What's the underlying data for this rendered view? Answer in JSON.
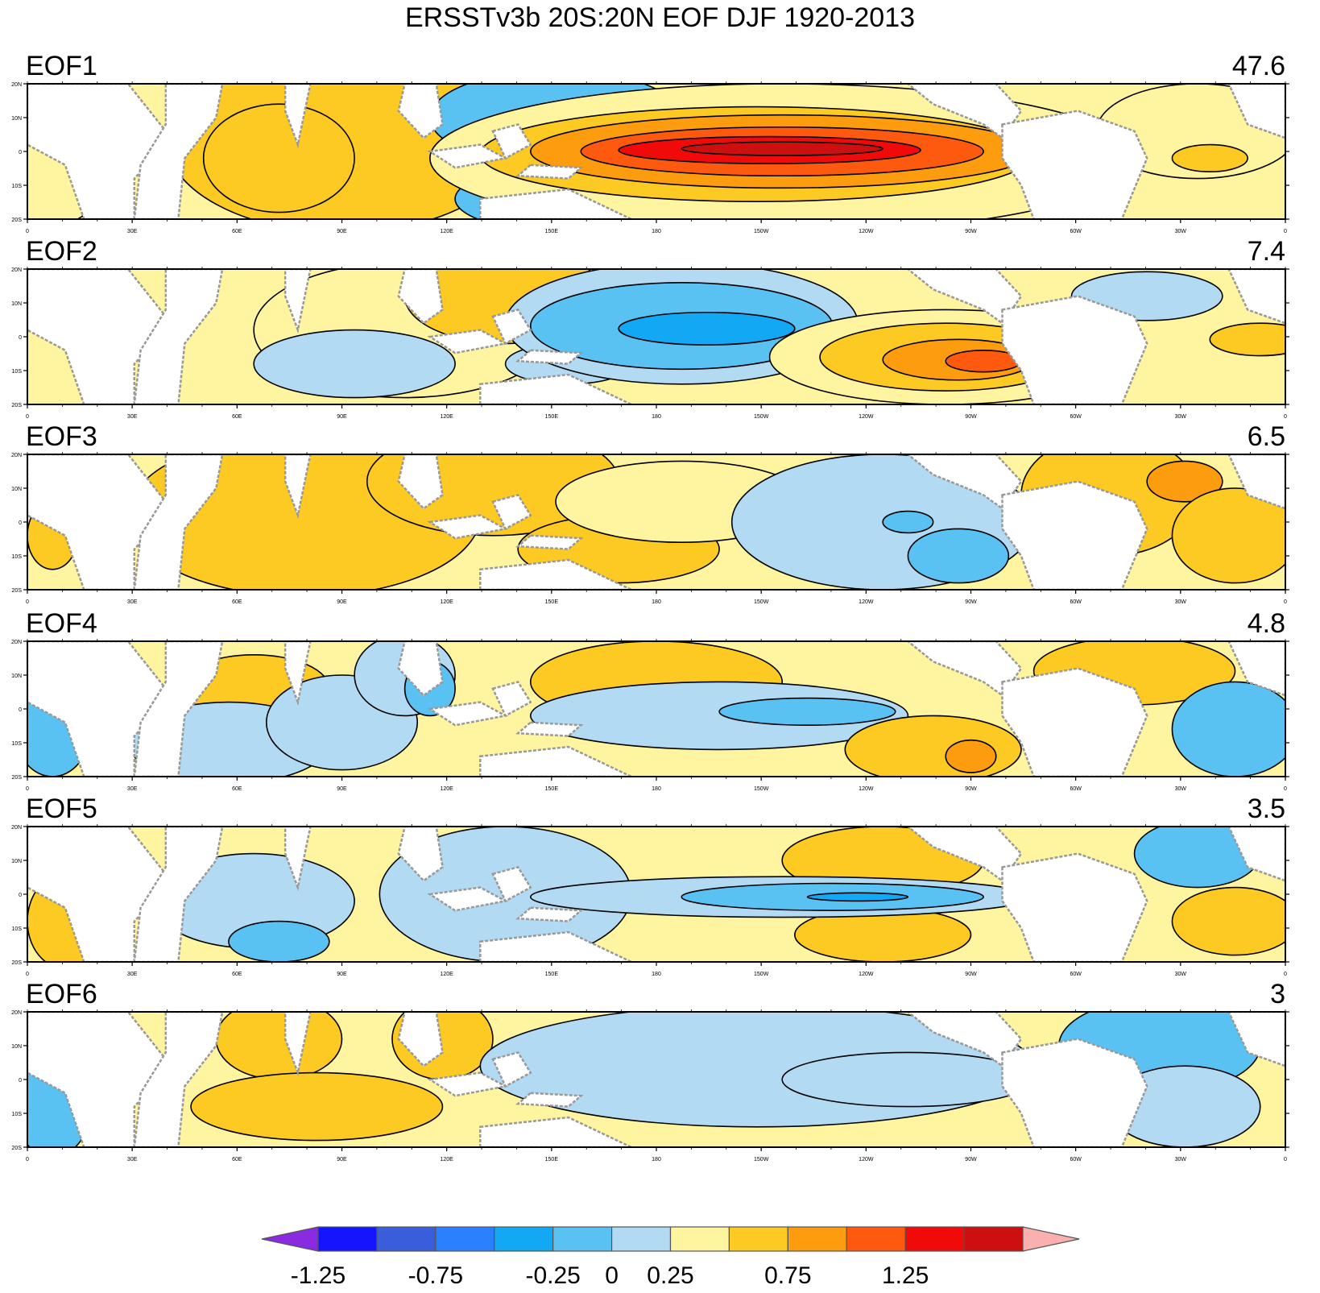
{
  "title": "ERSSTv3b 20S:20N EOF DJF 1920-2013",
  "chart_data": {
    "type": "heatmap",
    "title": "ERSSTv3b 20S:20N EOF DJF 1920-2013",
    "region": {
      "lon_range": [
        0,
        360
      ],
      "lat_range": [
        -20,
        20
      ]
    },
    "x_tick_labels": [
      "0",
      "30E",
      "60E",
      "90E",
      "120E",
      "150E",
      "180",
      "150W",
      "120W",
      "90W",
      "60W",
      "30W",
      "0"
    ],
    "y_tick_labels": [
      "20N",
      "10N",
      "0",
      "10S",
      "20S"
    ],
    "panels": [
      {
        "name": "EOF1",
        "variance_pct": "47.6"
      },
      {
        "name": "EOF2",
        "variance_pct": "7.4"
      },
      {
        "name": "EOF3",
        "variance_pct": "6.5"
      },
      {
        "name": "EOF4",
        "variance_pct": "4.8"
      },
      {
        "name": "EOF5",
        "variance_pct": "3.5"
      },
      {
        "name": "EOF6",
        "variance_pct": "3"
      }
    ],
    "colorbar": {
      "levels": [
        -1.25,
        -1.0,
        -0.75,
        -0.5,
        -0.25,
        0,
        0.25,
        0.5,
        0.75,
        1.0,
        1.25
      ],
      "labels": [
        "-1.25",
        "-0.75",
        "-0.25",
        "0",
        "0.25",
        "0.75",
        "1.25"
      ],
      "colors": [
        "#8a2be2",
        "#1414ff",
        "#3a5ddc",
        "#2a80ff",
        "#13a8f4",
        "#5ac2f2",
        "#b2daf2",
        "#fff4a0",
        "#fdca24",
        "#fe9c10",
        "#fd5a10",
        "#f00a0a",
        "#cc1010",
        "#fbb0b0"
      ]
    }
  }
}
